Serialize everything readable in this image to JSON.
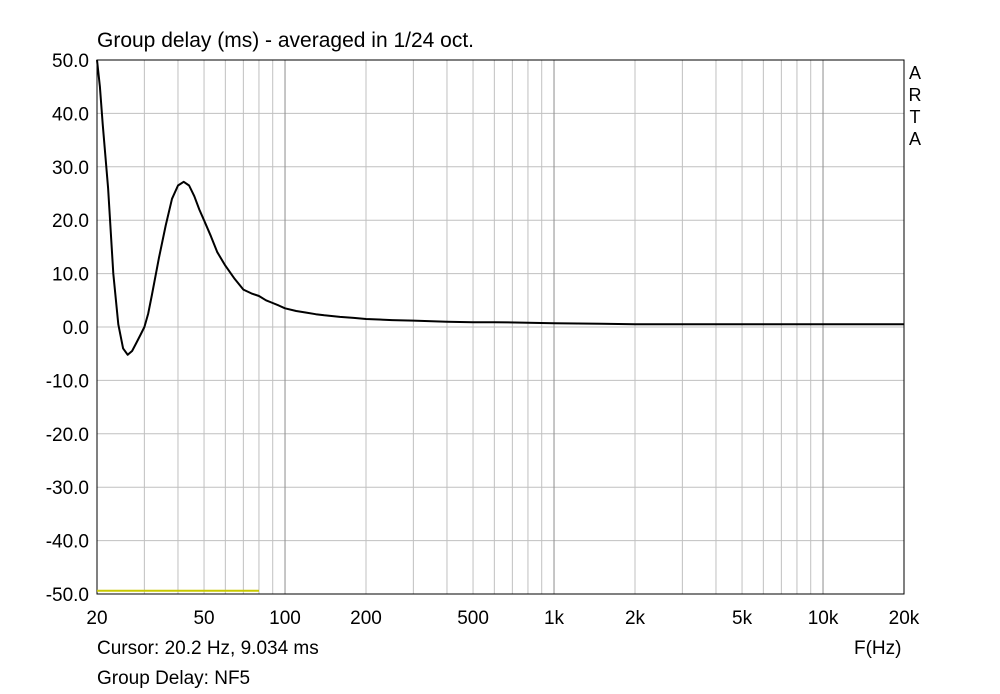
{
  "chart_data": {
    "type": "line",
    "title": "Group delay (ms) - averaged in 1/24 oct.",
    "xlabel": "F(Hz)",
    "ylabel": "",
    "xscale": "log",
    "xlim": [
      20,
      20000
    ],
    "ylim": [
      -50,
      50
    ],
    "grid": true,
    "yticks": [
      "50.0",
      "40.0",
      "30.0",
      "20.0",
      "10.0",
      "0.0",
      "-10.0",
      "-20.0",
      "-30.0",
      "-40.0",
      "-50.0"
    ],
    "ytick_values": [
      50,
      40,
      30,
      20,
      10,
      0,
      -10,
      -20,
      -30,
      -40,
      -50
    ],
    "xticks": [
      "20",
      "50",
      "100",
      "200",
      "500",
      "1k",
      "2k",
      "5k",
      "10k",
      "20k"
    ],
    "xtick_values": [
      20,
      50,
      100,
      200,
      500,
      1000,
      2000,
      5000,
      10000,
      20000
    ],
    "series": [
      {
        "name": "NF5",
        "color": "#000000",
        "x": [
          20,
          20.5,
          21,
          22,
          23,
          24,
          25,
          26,
          27,
          28,
          29,
          30,
          31,
          32,
          34,
          36,
          38,
          40,
          42,
          44,
          46,
          48,
          50,
          53,
          56,
          60,
          65,
          70,
          75,
          80,
          85,
          90,
          95,
          100,
          110,
          120,
          130,
          140,
          160,
          180,
          200,
          250,
          300,
          400,
          500,
          600,
          800,
          1000,
          1500,
          2000,
          5000,
          10000,
          20000
        ],
        "y": [
          50,
          45,
          38,
          26,
          10,
          0.5,
          -4,
          -5.2,
          -4.5,
          -3,
          -1.5,
          0,
          2.5,
          6,
          13,
          19,
          24,
          26.5,
          27.2,
          26.5,
          24.5,
          22,
          20,
          17,
          14,
          11.5,
          9,
          7,
          6.3,
          5.8,
          5,
          4.5,
          4,
          3.5,
          3,
          2.7,
          2.4,
          2.2,
          1.9,
          1.7,
          1.5,
          1.3,
          1.2,
          1.0,
          0.9,
          0.9,
          0.8,
          0.7,
          0.6,
          0.5,
          0.5,
          0.5,
          0.5
        ]
      },
      {
        "name": "",
        "color": "#c8c800",
        "x": [
          20,
          80
        ],
        "y": [
          -49.4,
          -49.4
        ]
      }
    ]
  },
  "labels": {
    "title": "Group delay (ms) - averaged in 1/24 oct.",
    "brand": [
      "A",
      "R",
      "T",
      "A"
    ],
    "x_unit": "F(Hz)",
    "cursor": "Cursor: 20.2 Hz, 9.034 ms",
    "legend": "Group Delay: NF5"
  },
  "colors": {
    "grid": "#c0c0c0",
    "frame": "#000000",
    "curve": "#000000",
    "marker": "#c8c800"
  }
}
